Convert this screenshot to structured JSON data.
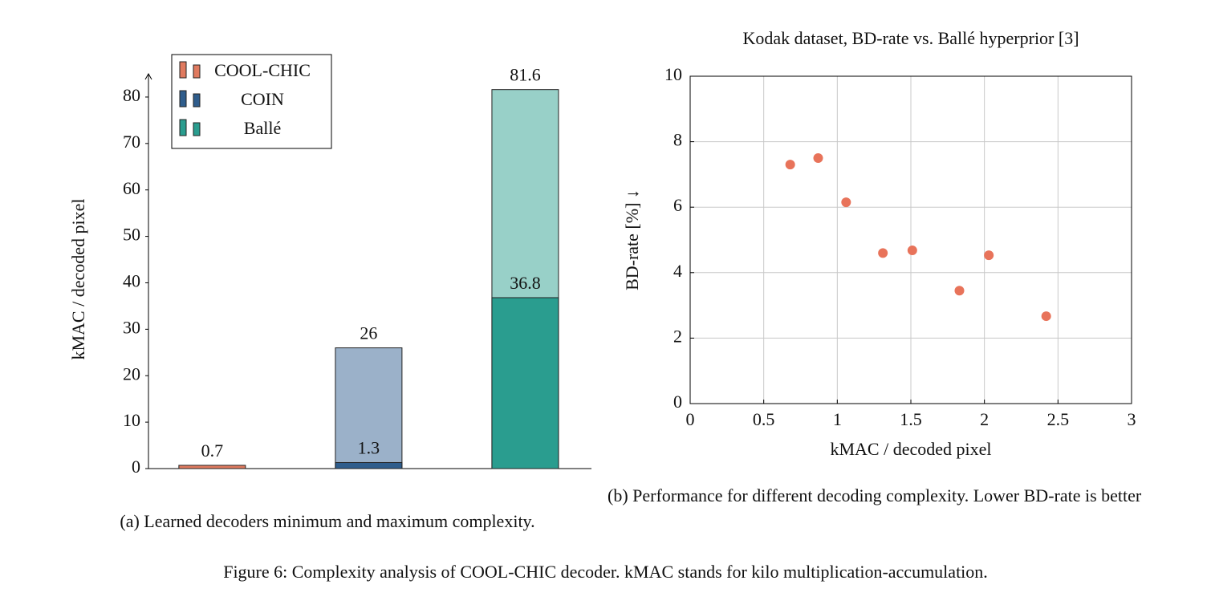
{
  "chart_data": [
    {
      "type": "bar",
      "ylabel": "kMAC / decoded pixel",
      "categories": [
        "COOL-CHIC",
        "COIN",
        "Ballé"
      ],
      "colors": [
        [
          "#e07a5f",
          "#e07a5f"
        ],
        [
          "#2f5d8c",
          "#9bb1c9"
        ],
        [
          "#2a9d8f",
          "#98d0c8"
        ]
      ],
      "series": [
        {
          "values": [
            0.7,
            1.3,
            36.8
          ]
        },
        {
          "values": [
            null,
            26,
            81.6
          ]
        }
      ],
      "ylim": [
        0,
        85
      ],
      "yticks": [
        0,
        10,
        20,
        30,
        40,
        50,
        60,
        70,
        80
      ],
      "caption": "(a) Learned decoders minimum and maximum complexity."
    },
    {
      "type": "scatter",
      "title": "Kodak dataset, BD-rate vs. Ballé hyperprior [3]",
      "xlabel": "kMAC / decoded pixel",
      "ylabel": "BD-rate [%] ↓",
      "x": [
        0.68,
        0.87,
        1.06,
        1.31,
        1.51,
        1.83,
        2.03,
        2.42
      ],
      "values": [
        7.3,
        7.5,
        6.15,
        4.6,
        4.68,
        3.45,
        4.53,
        2.67
      ],
      "color": "#e8735a",
      "xlim": [
        0,
        3
      ],
      "xticks": [
        0,
        0.5,
        1,
        1.5,
        2,
        2.5,
        3
      ],
      "ylim": [
        0,
        10
      ],
      "yticks": [
        0,
        2,
        4,
        6,
        8,
        10
      ],
      "grid": true,
      "caption": "(b) Performance for different decoding complexity. Lower BD-rate is better"
    }
  ],
  "figure_caption": "Figure 6: Complexity analysis of COOL-CHIC decoder. kMAC stands for kilo multiplication-accumulation."
}
